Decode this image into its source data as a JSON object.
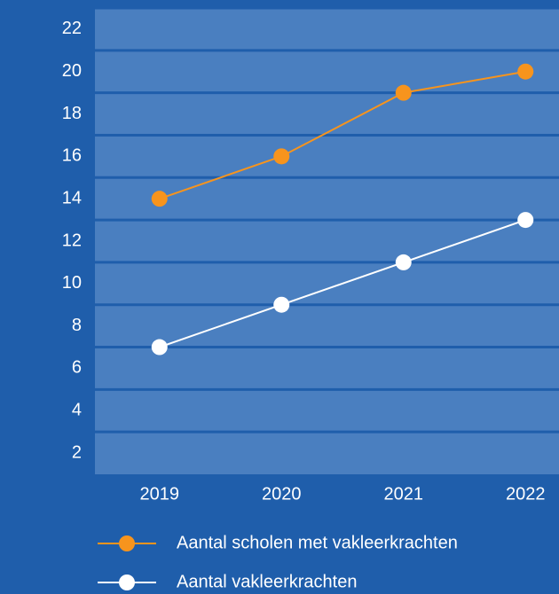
{
  "chart_data": {
    "type": "line",
    "categories": [
      "2019",
      "2020",
      "2021",
      "2022"
    ],
    "series": [
      {
        "name": "Aantal scholen met vakleerkrachten",
        "color": "#f7941d",
        "values": [
          14,
          16,
          19,
          20
        ]
      },
      {
        "name": "Aantal vakleerkrachten",
        "color": "#ffffff",
        "values": [
          7,
          9,
          11,
          13
        ]
      }
    ],
    "ylim": [
      1,
      23
    ],
    "yticks": [
      2,
      4,
      6,
      8,
      10,
      12,
      14,
      16,
      18,
      20,
      22
    ],
    "grid": true
  }
}
